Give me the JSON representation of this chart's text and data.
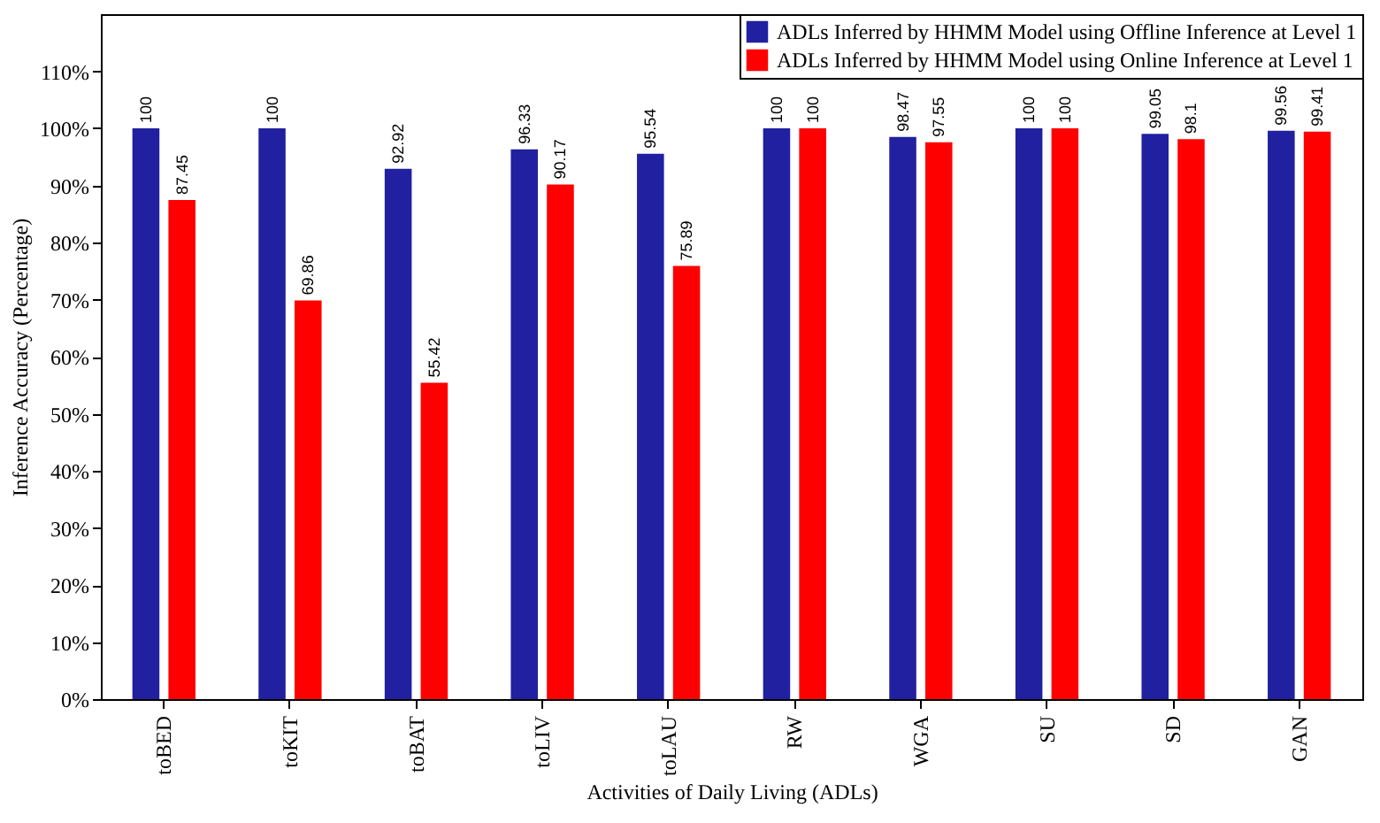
{
  "chart_data": {
    "type": "bar",
    "xlabel": "Activities of Daily Living (ADLs)",
    "ylabel": "Inference Accuracy (Percentage)",
    "categories": [
      "toBED",
      "toKIT",
      "toBAT",
      "toLIV",
      "toLAU",
      "RW",
      "WGA",
      "SU",
      "SD",
      "GAN"
    ],
    "series": [
      {
        "name": "ADLs Inferred by HHMM Model using Offline Inference at Level 1",
        "color": "#2020a0",
        "values": [
          100,
          100,
          92.92,
          96.33,
          95.54,
          100,
          98.47,
          100,
          99.05,
          99.56
        ]
      },
      {
        "name": "ADLs Inferred by HHMM Model using Online Inference at Level 1",
        "color": "#ff0000",
        "values": [
          87.45,
          69.86,
          55.42,
          90.17,
          75.89,
          100,
          97.55,
          100,
          98.1,
          99.41
        ]
      }
    ],
    "ylim": [
      0,
      120
    ],
    "yticks": [
      {
        "value": 0,
        "label": "0%"
      },
      {
        "value": 10,
        "label": "10%"
      },
      {
        "value": 20,
        "label": "20%"
      },
      {
        "value": 30,
        "label": "30%"
      },
      {
        "value": 40,
        "label": "40%"
      },
      {
        "value": 50,
        "label": "50%"
      },
      {
        "value": 60,
        "label": "60%"
      },
      {
        "value": 70,
        "label": "70%"
      },
      {
        "value": 80,
        "label": "80%"
      },
      {
        "value": 90,
        "label": "90%"
      },
      {
        "value": 100,
        "label": "100%"
      },
      {
        "value": 110,
        "label": "110%"
      }
    ],
    "data_labels": true,
    "legend": "top right"
  }
}
